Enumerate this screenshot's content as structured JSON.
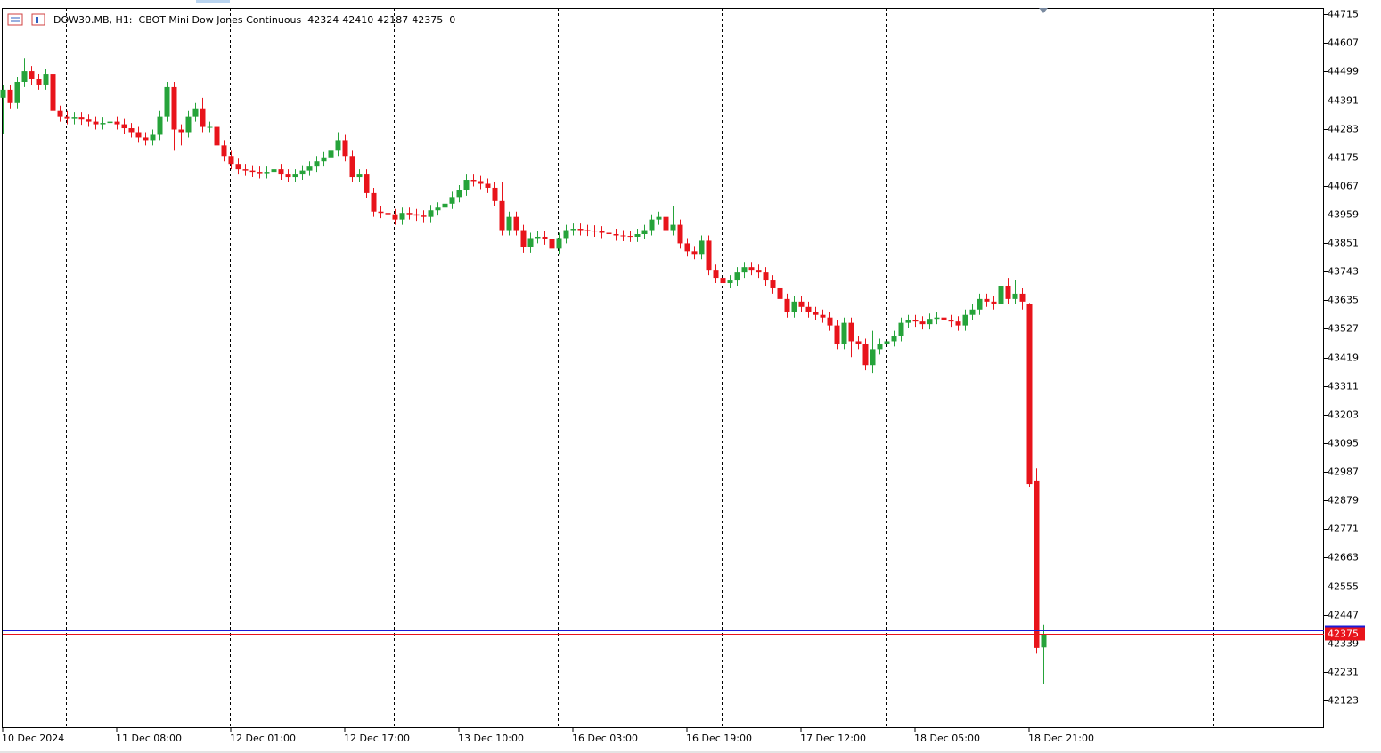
{
  "chart_data": {
    "type": "candlestick",
    "symbol": "DOW30.MB, H1:",
    "description": "CBOT Mini Dow Jones Continuous",
    "last_volume": 0,
    "bull_color": "#26a33a",
    "bear_color": "#e8141b",
    "bid_color": "#e8141b",
    "ask_color": "#1a1ad8",
    "bid": 42375,
    "ask": 42388,
    "ylim": [
      42019,
      44739
    ],
    "yticks": [
      44715,
      44607,
      44499,
      44391,
      44283,
      44175,
      44067,
      43959,
      43851,
      43743,
      43635,
      43527,
      43419,
      43311,
      43203,
      43095,
      42987,
      42879,
      42771,
      42663,
      42555,
      42447,
      42339,
      42231,
      42123
    ],
    "xticks": [
      {
        "value": 0,
        "label": "10 Dec 2024"
      },
      {
        "value": 16,
        "label": "11 Dec 08:00"
      },
      {
        "value": 32,
        "label": "12 Dec 01:00"
      },
      {
        "value": 48,
        "label": "12 Dec 17:00"
      },
      {
        "value": 64,
        "label": "13 Dec 10:00"
      },
      {
        "value": 80,
        "label": "16 Dec 03:00"
      },
      {
        "value": 96,
        "label": "16 Dec 19:00"
      },
      {
        "value": 112,
        "label": "17 Dec 12:00"
      },
      {
        "value": 128,
        "label": "18 Dec 05:00"
      },
      {
        "value": 144,
        "label": "18 Dec 21:00"
      }
    ],
    "open": [
      44400,
      44430,
      44380,
      44460,
      44500,
      44470,
      44450,
      44490,
      44350,
      44330,
      44320,
      44325,
      44318,
      44310,
      44300,
      44305,
      44310,
      44300,
      44285,
      44270,
      44250,
      44240,
      44260,
      44330,
      44440,
      44280,
      44270,
      44330,
      44360,
      44290,
      44290,
      44220,
      44180,
      44150,
      44130,
      44125,
      44120,
      44115,
      44120,
      44130,
      44110,
      44100,
      44110,
      44125,
      44140,
      44160,
      44175,
      44200,
      44240,
      44180,
      44100,
      44110,
      44040,
      43970,
      43965,
      43960,
      43940,
      43965,
      43960,
      43955,
      43950,
      43975,
      43985,
      44000,
      44025,
      44050,
      44090,
      44085,
      44075,
      44060,
      44010,
      43900,
      43950,
      43900,
      43835,
      43870,
      43875,
      43865,
      43830,
      43870,
      43900,
      43905,
      43900,
      43898,
      43895,
      43890,
      43885,
      43880,
      43878,
      43875,
      43885,
      43900,
      43940,
      43950,
      43900,
      43920,
      43850,
      43820,
      43810,
      43860,
      43750,
      43720,
      43700,
      43710,
      43740,
      43760,
      43750,
      43740,
      43710,
      43680,
      43640,
      43590,
      43630,
      43610,
      43590,
      43580,
      43570,
      43540,
      43470,
      43550,
      43480,
      43470,
      43390,
      43450,
      43470,
      43480,
      43500,
      43550,
      43560,
      43555,
      43545,
      43565,
      43570,
      43560,
      43555,
      43540,
      43580,
      43600,
      43640,
      43630,
      43620,
      43690,
      43640,
      43660,
      43622,
      42954,
      42324
    ],
    "high": [
      44450,
      44450,
      44480,
      44550,
      44520,
      44490,
      44510,
      44510,
      44370,
      44350,
      44345,
      44345,
      44338,
      44330,
      44325,
      44330,
      44330,
      44320,
      44305,
      44290,
      44270,
      44280,
      44350,
      44460,
      44460,
      44300,
      44350,
      44380,
      44400,
      44310,
      44310,
      44240,
      44200,
      44170,
      44150,
      44145,
      44140,
      44140,
      44150,
      44150,
      44130,
      44130,
      44145,
      44160,
      44180,
      44195,
      44220,
      44270,
      44260,
      44200,
      44130,
      44130,
      44060,
      43990,
      43985,
      43980,
      43985,
      43985,
      43980,
      43975,
      43995,
      44005,
      44020,
      44045,
      44070,
      44110,
      44110,
      44105,
      44095,
      44080,
      44080,
      43970,
      43970,
      43920,
      43890,
      43895,
      43895,
      43885,
      43890,
      43920,
      43925,
      43925,
      43920,
      43918,
      43915,
      43910,
      43905,
      43900,
      43898,
      43905,
      43920,
      43960,
      43970,
      43970,
      43990,
      43940,
      43870,
      43840,
      43880,
      43880,
      43770,
      43740,
      43730,
      43760,
      43780,
      43780,
      43770,
      43760,
      43730,
      43700,
      43660,
      43650,
      43650,
      43630,
      43610,
      43600,
      43590,
      43560,
      43570,
      43570,
      43500,
      43490,
      43520,
      43490,
      43500,
      43520,
      43570,
      43580,
      43580,
      43575,
      43585,
      43590,
      43590,
      43580,
      43575,
      43600,
      43620,
      43660,
      43660,
      43650,
      43720,
      43720,
      43710,
      43680,
      43625,
      43000,
      42410
    ],
    "low": [
      44265,
      44360,
      44360,
      44440,
      44450,
      44430,
      44430,
      44310,
      44310,
      44300,
      44300,
      44298,
      44290,
      44280,
      44280,
      44285,
      44280,
      44265,
      44250,
      44230,
      44220,
      44220,
      44240,
      44310,
      44200,
      44220,
      44250,
      44310,
      44270,
      44270,
      44200,
      44160,
      44130,
      44110,
      44105,
      44100,
      44095,
      44095,
      44100,
      44090,
      44080,
      44080,
      44090,
      44105,
      44120,
      44140,
      44155,
      44180,
      44160,
      44080,
      44080,
      44020,
      43950,
      43945,
      43940,
      43920,
      43920,
      43940,
      43935,
      43930,
      43930,
      43955,
      43965,
      43980,
      44005,
      44030,
      44065,
      44055,
      44040,
      43990,
      43880,
      43880,
      43880,
      43815,
      43815,
      43850,
      43845,
      43810,
      43810,
      43850,
      43880,
      43880,
      43878,
      43875,
      43870,
      43865,
      43860,
      43858,
      43855,
      43855,
      43865,
      43880,
      43920,
      43840,
      43880,
      43830,
      43800,
      43790,
      43790,
      43730,
      43700,
      43680,
      43680,
      43690,
      43720,
      43730,
      43720,
      43690,
      43660,
      43620,
      43570,
      43570,
      43590,
      43570,
      43560,
      43550,
      43520,
      43450,
      43450,
      43420,
      43450,
      43370,
      43360,
      43430,
      43450,
      43460,
      43480,
      43530,
      43535,
      43525,
      43525,
      43545,
      43540,
      43535,
      43520,
      43520,
      43560,
      43580,
      43610,
      43600,
      43470,
      43620,
      43620,
      43600,
      42930,
      42300,
      42187
    ],
    "close": [
      44430,
      44380,
      44460,
      44500,
      44470,
      44450,
      44490,
      44350,
      44330,
      44320,
      44325,
      44318,
      44310,
      44300,
      44305,
      44310,
      44300,
      44285,
      44270,
      44250,
      44240,
      44260,
      44330,
      44440,
      44280,
      44270,
      44330,
      44360,
      44290,
      44290,
      44220,
      44180,
      44150,
      44130,
      44125,
      44120,
      44115,
      44120,
      44130,
      44110,
      44100,
      44110,
      44125,
      44140,
      44160,
      44175,
      44200,
      44240,
      44180,
      44100,
      44110,
      44040,
      43970,
      43965,
      43960,
      43940,
      43965,
      43960,
      43955,
      43950,
      43975,
      43985,
      44000,
      44025,
      44050,
      44090,
      44085,
      44075,
      44060,
      44010,
      43900,
      43950,
      43900,
      43835,
      43870,
      43875,
      43865,
      43830,
      43870,
      43900,
      43905,
      43900,
      43898,
      43895,
      43890,
      43885,
      43880,
      43878,
      43875,
      43885,
      43900,
      43940,
      43950,
      43900,
      43920,
      43850,
      43820,
      43810,
      43860,
      43750,
      43720,
      43700,
      43710,
      43740,
      43760,
      43750,
      43740,
      43710,
      43680,
      43640,
      43590,
      43630,
      43610,
      43590,
      43580,
      43570,
      43540,
      43470,
      43550,
      43480,
      43470,
      43390,
      43450,
      43470,
      43480,
      43500,
      43550,
      43560,
      43555,
      43545,
      43565,
      43570,
      43560,
      43555,
      43540,
      43580,
      43600,
      43640,
      43630,
      43620,
      43690,
      43640,
      43660,
      43630,
      42940,
      42322,
      42375
    ]
  }
}
